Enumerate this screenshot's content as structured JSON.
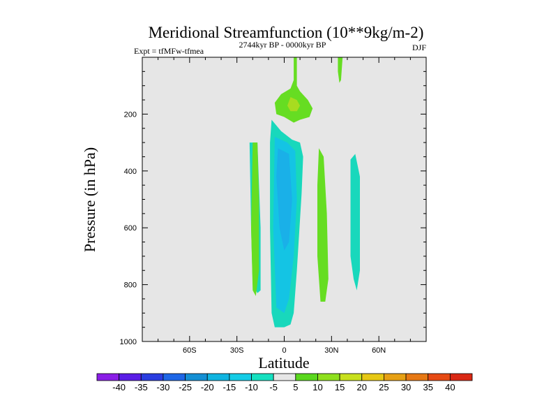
{
  "chart_data": {
    "type": "contour",
    "title": "Meridional Streamfunction (10**9kg/m-2)",
    "subtitle_left": "Expt = tfMFw-tfmea",
    "subtitle_center": "2744kyr BP - 0000kyr BP",
    "subtitle_right": "DJF",
    "xlabel": "Latitude",
    "ylabel": "Pressure (in hPa)",
    "xlim": [
      -90,
      90
    ],
    "ylim": [
      1000,
      0
    ],
    "x_ticks": [
      {
        "value": -60,
        "label": "60S"
      },
      {
        "value": -30,
        "label": "30S"
      },
      {
        "value": 0,
        "label": "0"
      },
      {
        "value": 30,
        "label": "30N"
      },
      {
        "value": 60,
        "label": "60N"
      }
    ],
    "y_ticks": [
      {
        "value": 200,
        "label": "200"
      },
      {
        "value": 400,
        "label": "400"
      },
      {
        "value": 600,
        "label": "600"
      },
      {
        "value": 800,
        "label": "800"
      },
      {
        "value": 1000,
        "label": "1000"
      }
    ],
    "background_color": "#e6e6e6",
    "colorbar": {
      "labels": [
        "-40",
        "-35",
        "-30",
        "-25",
        "-20",
        "-15",
        "-10",
        "-5",
        "5",
        "10",
        "15",
        "20",
        "25",
        "30",
        "35",
        "40"
      ],
      "colors": [
        "#8a1ee6",
        "#5a1ee6",
        "#2a3de0",
        "#1e66e6",
        "#148fd4",
        "#10b4e0",
        "#14cce6",
        "#16e0c0",
        "#e6e6e6",
        "#5ad81e",
        "#8ee01e",
        "#c8e01e",
        "#e6c814",
        "#e6a014",
        "#e67814",
        "#e64a14",
        "#d92814"
      ]
    },
    "regions": [
      {
        "level": "-5 to -10",
        "color": "#18d8bc",
        "points": [
          [
            -22,
            0.3
          ],
          [
            -17,
            0.3
          ],
          [
            -15,
            0.6
          ],
          [
            -15,
            0.82
          ],
          [
            -17,
            0.83
          ],
          [
            -20,
            0.8
          ],
          [
            -21,
            0.6
          ]
        ]
      },
      {
        "level": "-5 to -10",
        "color": "#18d8bc",
        "points": [
          [
            -8,
            0.22
          ],
          [
            -2,
            0.26
          ],
          [
            5,
            0.29
          ],
          [
            10,
            0.3
          ],
          [
            12,
            0.35
          ],
          [
            11,
            0.48
          ],
          [
            8,
            0.75
          ],
          [
            6,
            0.9
          ],
          [
            4,
            0.94
          ],
          [
            0,
            0.95
          ],
          [
            -6,
            0.95
          ],
          [
            -8,
            0.9
          ],
          [
            -9,
            0.6
          ],
          [
            -9,
            0.3
          ]
        ]
      },
      {
        "level": "-5 to -10",
        "color": "#18d8bc",
        "points": [
          [
            42,
            0.36
          ],
          [
            45,
            0.34
          ],
          [
            48,
            0.42
          ],
          [
            48,
            0.75
          ],
          [
            46,
            0.82
          ],
          [
            44,
            0.78
          ],
          [
            42,
            0.7
          ]
        ]
      },
      {
        "level": "-10 to -15",
        "color": "#14c4e4",
        "points": [
          [
            -6,
            0.28
          ],
          [
            2,
            0.3
          ],
          [
            7,
            0.33
          ],
          [
            8,
            0.5
          ],
          [
            6,
            0.7
          ],
          [
            3,
            0.85
          ],
          [
            0,
            0.9
          ],
          [
            -5,
            0.88
          ],
          [
            -7,
            0.6
          ]
        ]
      },
      {
        "level": "-15 to -20",
        "color": "#1ab0e8",
        "points": [
          [
            -4,
            0.32
          ],
          [
            3,
            0.34
          ],
          [
            5,
            0.5
          ],
          [
            3,
            0.65
          ],
          [
            0,
            0.68
          ],
          [
            -3,
            0.6
          ],
          [
            -5,
            0.42
          ]
        ]
      },
      {
        "level": "5 to 10",
        "color": "#66dd22",
        "points": [
          [
            -20,
            0.3
          ],
          [
            -17,
            0.3
          ],
          [
            -16,
            0.5
          ],
          [
            -16,
            0.75
          ],
          [
            -18,
            0.84
          ],
          [
            -20,
            0.82
          ],
          [
            -21,
            0.6
          ]
        ]
      },
      {
        "level": "5 to 10",
        "color": "#66dd22",
        "points": [
          [
            22,
            0.32
          ],
          [
            25,
            0.35
          ],
          [
            27,
            0.55
          ],
          [
            28,
            0.78
          ],
          [
            26,
            0.86
          ],
          [
            23,
            0.86
          ],
          [
            21,
            0.7
          ],
          [
            21,
            0.45
          ]
        ]
      },
      {
        "level": "5 to 10",
        "color": "#66dd22",
        "points": [
          [
            6,
            0.0
          ],
          [
            8,
            0.0
          ],
          [
            8,
            0.1
          ],
          [
            10,
            0.12
          ],
          [
            15,
            0.15
          ],
          [
            18,
            0.18
          ],
          [
            16,
            0.21
          ],
          [
            10,
            0.22
          ],
          [
            6,
            0.23
          ],
          [
            0,
            0.21
          ],
          [
            -5,
            0.2
          ],
          [
            -6,
            0.16
          ],
          [
            -2,
            0.13
          ],
          [
            4,
            0.11
          ],
          [
            6,
            0.08
          ]
        ]
      },
      {
        "level": "5 to 10",
        "color": "#66dd22",
        "points": [
          [
            34,
            0.0
          ],
          [
            37,
            0.0
          ],
          [
            36,
            0.08
          ],
          [
            35,
            0.09
          ],
          [
            34,
            0.05
          ]
        ]
      },
      {
        "level": "10 to 15",
        "color": "#a8dc20",
        "points": [
          [
            4,
            0.14
          ],
          [
            8,
            0.15
          ],
          [
            10,
            0.17
          ],
          [
            8,
            0.19
          ],
          [
            4,
            0.19
          ],
          [
            2,
            0.17
          ]
        ]
      }
    ]
  }
}
